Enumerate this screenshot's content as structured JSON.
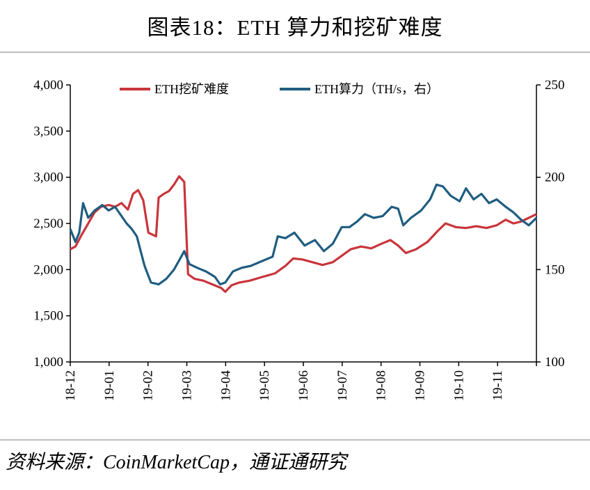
{
  "title": "图表18：ETH 算力和挖矿难度",
  "source": "资料来源：CoinMarketCap，通证通研究",
  "chart_data": {
    "type": "line",
    "x_tick_labels": [
      "18-12",
      "19-01",
      "19-02",
      "19-03",
      "19-04",
      "19-05",
      "19-06",
      "19-07",
      "19-08",
      "19-09",
      "19-10",
      "19-11"
    ],
    "x_range": [
      "2018-12-01",
      "2019-11-30"
    ],
    "y_left": {
      "ticks": [
        "1,000",
        "1,500",
        "2,000",
        "2,500",
        "3,000",
        "3,500",
        "4,000"
      ],
      "ylim": [
        1000,
        4000
      ]
    },
    "y_right": {
      "ticks": [
        "100",
        "150",
        "200",
        "250"
      ],
      "ylim": [
        100,
        250
      ]
    },
    "legend_position": "top",
    "grid": false,
    "series": [
      {
        "name": "ETH挖矿难度",
        "axis": "left",
        "color": "#c8353b",
        "points": [
          [
            "2018-12-01",
            2220
          ],
          [
            "2018-12-05",
            2250
          ],
          [
            "2018-12-10",
            2380
          ],
          [
            "2018-12-15",
            2500
          ],
          [
            "2018-12-20",
            2620
          ],
          [
            "2018-12-25",
            2680
          ],
          [
            "2018-12-31",
            2700
          ],
          [
            "2019-01-05",
            2680
          ],
          [
            "2019-01-10",
            2720
          ],
          [
            "2019-01-15",
            2650
          ],
          [
            "2019-01-19",
            2820
          ],
          [
            "2019-01-23",
            2860
          ],
          [
            "2019-01-27",
            2750
          ],
          [
            "2019-01-31",
            2400
          ],
          [
            "2019-02-03",
            2380
          ],
          [
            "2019-02-06",
            2360
          ],
          [
            "2019-02-08",
            2780
          ],
          [
            "2019-02-12",
            2820
          ],
          [
            "2019-02-16",
            2850
          ],
          [
            "2019-02-20",
            2920
          ],
          [
            "2019-02-24",
            3010
          ],
          [
            "2019-02-28",
            2950
          ],
          [
            "2019-03-03",
            1950
          ],
          [
            "2019-03-08",
            1900
          ],
          [
            "2019-03-15",
            1880
          ],
          [
            "2019-03-22",
            1840
          ],
          [
            "2019-03-29",
            1800
          ],
          [
            "2019-04-01",
            1760
          ],
          [
            "2019-04-06",
            1830
          ],
          [
            "2019-04-12",
            1860
          ],
          [
            "2019-04-20",
            1880
          ],
          [
            "2019-04-30",
            1920
          ],
          [
            "2019-05-10",
            1960
          ],
          [
            "2019-05-18",
            2040
          ],
          [
            "2019-05-24",
            2120
          ],
          [
            "2019-05-31",
            2110
          ],
          [
            "2019-06-08",
            2080
          ],
          [
            "2019-06-16",
            2050
          ],
          [
            "2019-06-24",
            2080
          ],
          [
            "2019-07-01",
            2150
          ],
          [
            "2019-07-08",
            2220
          ],
          [
            "2019-07-16",
            2250
          ],
          [
            "2019-07-24",
            2230
          ],
          [
            "2019-08-01",
            2280
          ],
          [
            "2019-08-08",
            2320
          ],
          [
            "2019-08-14",
            2260
          ],
          [
            "2019-08-20",
            2180
          ],
          [
            "2019-08-28",
            2220
          ],
          [
            "2019-09-06",
            2300
          ],
          [
            "2019-09-14",
            2420
          ],
          [
            "2019-09-20",
            2500
          ],
          [
            "2019-09-28",
            2460
          ],
          [
            "2019-10-06",
            2450
          ],
          [
            "2019-10-14",
            2470
          ],
          [
            "2019-10-22",
            2450
          ],
          [
            "2019-10-30",
            2480
          ],
          [
            "2019-11-06",
            2540
          ],
          [
            "2019-11-12",
            2500
          ],
          [
            "2019-11-18",
            2520
          ],
          [
            "2019-11-24",
            2560
          ],
          [
            "2019-11-30",
            2600
          ]
        ]
      },
      {
        "name": "ETH算力（TH/s，右）",
        "axis": "right",
        "color": "#1f5d80",
        "points": [
          [
            "2018-12-01",
            172
          ],
          [
            "2018-12-05",
            165
          ],
          [
            "2018-12-08",
            170
          ],
          [
            "2018-12-11",
            186
          ],
          [
            "2018-12-15",
            178
          ],
          [
            "2018-12-20",
            182
          ],
          [
            "2018-12-26",
            185
          ],
          [
            "2018-12-31",
            182
          ],
          [
            "2019-01-05",
            184
          ],
          [
            "2019-01-10",
            179
          ],
          [
            "2019-01-14",
            175
          ],
          [
            "2019-01-18",
            172
          ],
          [
            "2019-01-22",
            168
          ],
          [
            "2019-01-25",
            160
          ],
          [
            "2019-01-28",
            152
          ],
          [
            "2019-02-02",
            143
          ],
          [
            "2019-02-08",
            142
          ],
          [
            "2019-02-14",
            145
          ],
          [
            "2019-02-20",
            150
          ],
          [
            "2019-02-24",
            155
          ],
          [
            "2019-02-28",
            160
          ],
          [
            "2019-03-04",
            153
          ],
          [
            "2019-03-10",
            151
          ],
          [
            "2019-03-17",
            149
          ],
          [
            "2019-03-24",
            146
          ],
          [
            "2019-03-28",
            142
          ],
          [
            "2019-04-01",
            143
          ],
          [
            "2019-04-07",
            149
          ],
          [
            "2019-04-14",
            151
          ],
          [
            "2019-04-21",
            152
          ],
          [
            "2019-05-01",
            155
          ],
          [
            "2019-05-08",
            157
          ],
          [
            "2019-05-12",
            168
          ],
          [
            "2019-05-18",
            167
          ],
          [
            "2019-05-25",
            170
          ],
          [
            "2019-06-02",
            163
          ],
          [
            "2019-06-10",
            166
          ],
          [
            "2019-06-17",
            160
          ],
          [
            "2019-06-24",
            164
          ],
          [
            "2019-07-01",
            173
          ],
          [
            "2019-07-07",
            173
          ],
          [
            "2019-07-13",
            176
          ],
          [
            "2019-07-19",
            180
          ],
          [
            "2019-07-26",
            178
          ],
          [
            "2019-08-02",
            179
          ],
          [
            "2019-08-09",
            184
          ],
          [
            "2019-08-14",
            183
          ],
          [
            "2019-08-18",
            174
          ],
          [
            "2019-08-24",
            178
          ],
          [
            "2019-09-01",
            182
          ],
          [
            "2019-09-08",
            188
          ],
          [
            "2019-09-13",
            196
          ],
          [
            "2019-09-18",
            195
          ],
          [
            "2019-09-24",
            190
          ],
          [
            "2019-10-01",
            187
          ],
          [
            "2019-10-06",
            194
          ],
          [
            "2019-10-12",
            188
          ],
          [
            "2019-10-18",
            191
          ],
          [
            "2019-10-24",
            186
          ],
          [
            "2019-10-30",
            188
          ],
          [
            "2019-11-06",
            184
          ],
          [
            "2019-11-12",
            181
          ],
          [
            "2019-11-18",
            177
          ],
          [
            "2019-11-24",
            174
          ],
          [
            "2019-11-30",
            178
          ]
        ]
      }
    ]
  }
}
